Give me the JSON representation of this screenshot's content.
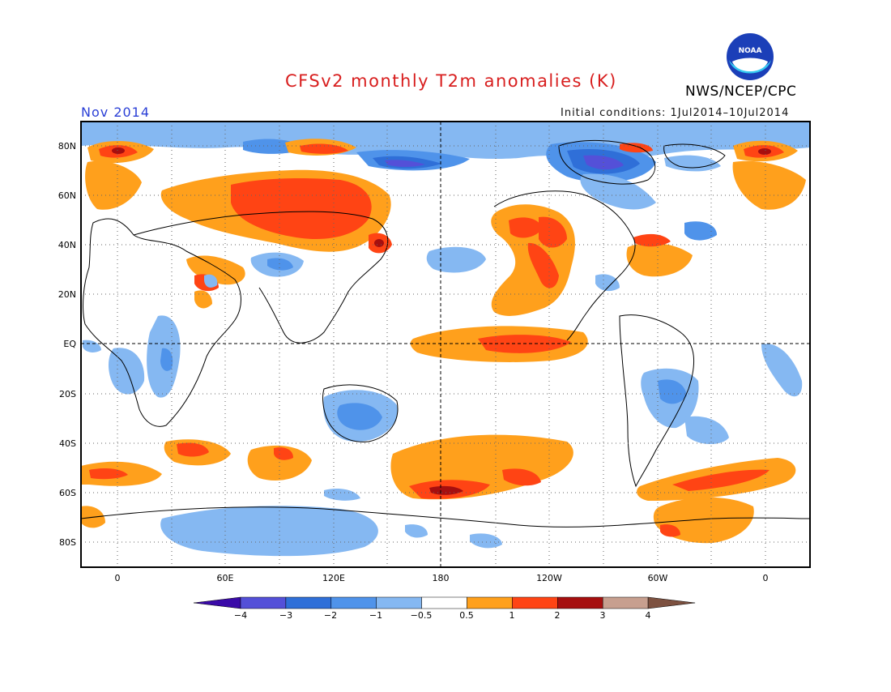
{
  "header": {
    "title": "CFSv2 monthly T2m anomalies (K)",
    "month": "Nov 2014",
    "initial_conditions": "Initial conditions: 1Jul2014–10Jul2014",
    "organization": "NWS/NCEP/CPC",
    "logo_text": "NOAA"
  },
  "map": {
    "lat_labels": [
      "80N",
      "60N",
      "40N",
      "20N",
      "EQ",
      "20S",
      "40S",
      "60S",
      "80S"
    ],
    "lon_labels": [
      "0",
      "60E",
      "120E",
      "180",
      "120W",
      "60W",
      "0"
    ]
  },
  "colorbar": {
    "labels": [
      "−4",
      "−3",
      "−2",
      "−1",
      "−0.5",
      "0.5",
      "1",
      "2",
      "3",
      "4"
    ],
    "colors": [
      "#3a0aa8",
      "#5450d8",
      "#2f6fd8",
      "#4f93ea",
      "#85b8f2",
      "#ffffff",
      "#ffa01c",
      "#ff4414",
      "#a60f0f",
      "#c79f8f",
      "#7d5140"
    ]
  },
  "colors": {
    "title": "#d81e1e",
    "month": "#2a3fd6",
    "land_outline": "#000000",
    "grid": "#666666"
  }
}
